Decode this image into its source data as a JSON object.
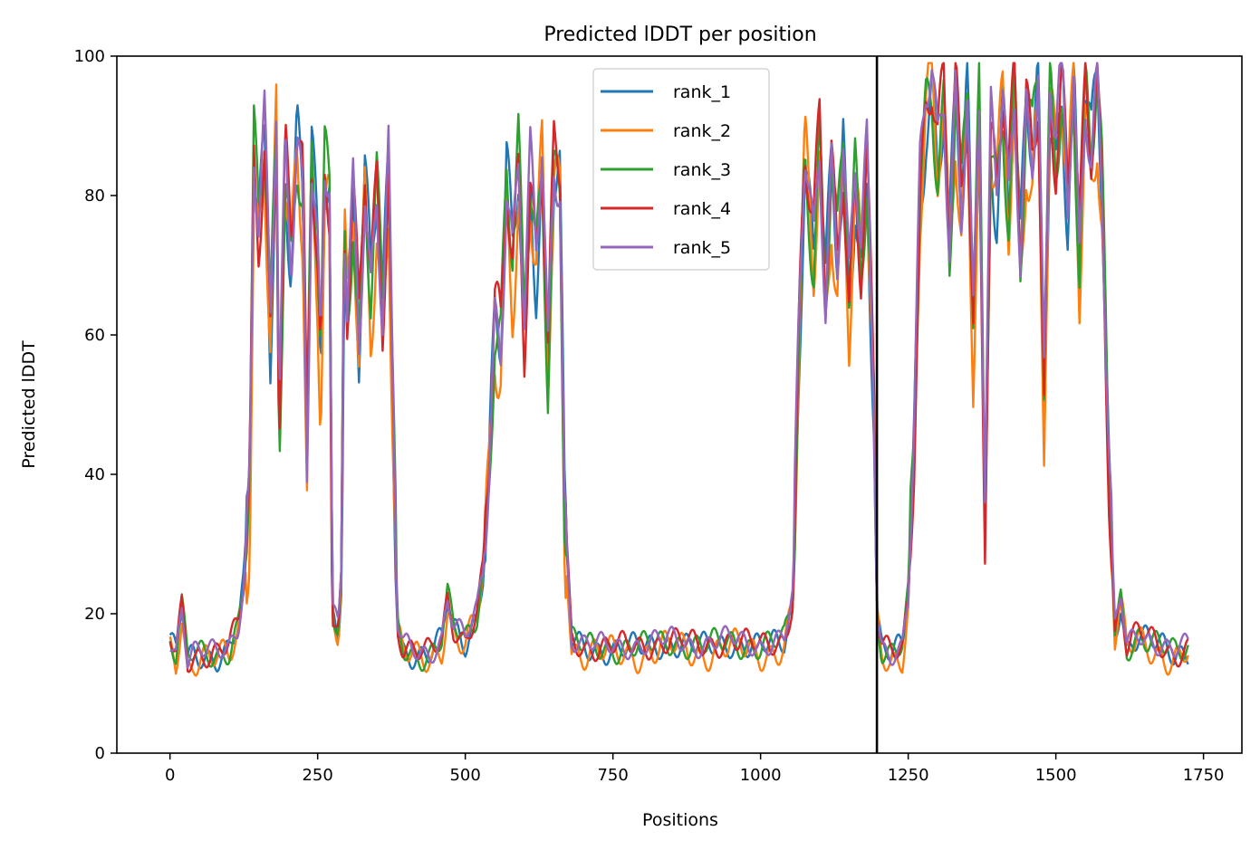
{
  "chart_data": {
    "type": "line",
    "title": "Predicted lDDT per position",
    "xlabel": "Positions",
    "ylabel": "Predicted lDDT",
    "xlim": [
      -90,
      1815
    ],
    "ylim": [
      0,
      100
    ],
    "xticks": [
      0,
      250,
      500,
      750,
      1000,
      1250,
      1500,
      1750
    ],
    "yticks": [
      0,
      20,
      40,
      60,
      80,
      100
    ],
    "vline": 1197,
    "grid": false,
    "legend_position": "top-center",
    "series": [
      {
        "name": "rank_1",
        "color": "#1f77b4",
        "offset": 0.0,
        "phase": 0.3,
        "amp": 3.0
      },
      {
        "name": "rank_2",
        "color": "#ff7f0e",
        "offset": -2.5,
        "phase": 1.7,
        "amp": 3.5
      },
      {
        "name": "rank_3",
        "color": "#2ca02c",
        "offset": 0.5,
        "phase": 2.9,
        "amp": 3.0
      },
      {
        "name": "rank_4",
        "color": "#d62728",
        "offset": 1.0,
        "phase": 4.1,
        "amp": 2.8
      },
      {
        "name": "rank_5",
        "color": "#9467bd",
        "offset": 1.5,
        "phase": 5.3,
        "amp": 2.5
      }
    ],
    "profile": [
      [
        0,
        16
      ],
      [
        10,
        14
      ],
      [
        20,
        21
      ],
      [
        30,
        13
      ],
      [
        40,
        14
      ],
      [
        60,
        14
      ],
      [
        80,
        14
      ],
      [
        100,
        15
      ],
      [
        115,
        18
      ],
      [
        125,
        24
      ],
      [
        135,
        38
      ],
      [
        142,
        85
      ],
      [
        150,
        75
      ],
      [
        160,
        88
      ],
      [
        170,
        60
      ],
      [
        180,
        90
      ],
      [
        185,
        45
      ],
      [
        195,
        85
      ],
      [
        205,
        70
      ],
      [
        215,
        88
      ],
      [
        225,
        80
      ],
      [
        232,
        42
      ],
      [
        240,
        85
      ],
      [
        250,
        70
      ],
      [
        255,
        55
      ],
      [
        262,
        82
      ],
      [
        270,
        80
      ],
      [
        275,
        20
      ],
      [
        285,
        17
      ],
      [
        290,
        25
      ],
      [
        295,
        75
      ],
      [
        300,
        62
      ],
      [
        310,
        80
      ],
      [
        320,
        58
      ],
      [
        330,
        82
      ],
      [
        340,
        66
      ],
      [
        350,
        80
      ],
      [
        360,
        62
      ],
      [
        370,
        84
      ],
      [
        375,
        60
      ],
      [
        385,
        18
      ],
      [
        395,
        15
      ],
      [
        420,
        14
      ],
      [
        440,
        14
      ],
      [
        460,
        16
      ],
      [
        470,
        22
      ],
      [
        480,
        18
      ],
      [
        500,
        16
      ],
      [
        520,
        20
      ],
      [
        530,
        26
      ],
      [
        540,
        40
      ],
      [
        550,
        62
      ],
      [
        560,
        58
      ],
      [
        570,
        82
      ],
      [
        580,
        70
      ],
      [
        590,
        84
      ],
      [
        600,
        60
      ],
      [
        610,
        82
      ],
      [
        620,
        70
      ],
      [
        630,
        85
      ],
      [
        640,
        55
      ],
      [
        650,
        84
      ],
      [
        660,
        82
      ],
      [
        668,
        35
      ],
      [
        680,
        16
      ],
      [
        700,
        15
      ],
      [
        750,
        15
      ],
      [
        800,
        15
      ],
      [
        850,
        16
      ],
      [
        900,
        15
      ],
      [
        950,
        16
      ],
      [
        1000,
        15
      ],
      [
        1040,
        16
      ],
      [
        1055,
        22
      ],
      [
        1065,
        60
      ],
      [
        1075,
        86
      ],
      [
        1090,
        72
      ],
      [
        1100,
        88
      ],
      [
        1110,
        64
      ],
      [
        1120,
        84
      ],
      [
        1130,
        70
      ],
      [
        1140,
        86
      ],
      [
        1150,
        64
      ],
      [
        1160,
        82
      ],
      [
        1170,
        70
      ],
      [
        1180,
        84
      ],
      [
        1192,
        50
      ],
      [
        1197,
        20
      ],
      [
        1205,
        15
      ],
      [
        1220,
        14
      ],
      [
        1240,
        15
      ],
      [
        1250,
        22
      ],
      [
        1260,
        45
      ],
      [
        1270,
        80
      ],
      [
        1280,
        92
      ],
      [
        1290,
        96
      ],
      [
        1300,
        85
      ],
      [
        1310,
        94
      ],
      [
        1320,
        72
      ],
      [
        1330,
        95
      ],
      [
        1340,
        78
      ],
      [
        1350,
        94
      ],
      [
        1360,
        60
      ],
      [
        1370,
        92
      ],
      [
        1380,
        33
      ],
      [
        1390,
        88
      ],
      [
        1400,
        80
      ],
      [
        1410,
        94
      ],
      [
        1420,
        78
      ],
      [
        1430,
        96
      ],
      [
        1440,
        70
      ],
      [
        1450,
        92
      ],
      [
        1460,
        85
      ],
      [
        1470,
        96
      ],
      [
        1480,
        50
      ],
      [
        1490,
        94
      ],
      [
        1500,
        85
      ],
      [
        1510,
        96
      ],
      [
        1520,
        78
      ],
      [
        1530,
        97
      ],
      [
        1540,
        70
      ],
      [
        1550,
        95
      ],
      [
        1560,
        85
      ],
      [
        1570,
        96
      ],
      [
        1578,
        80
      ],
      [
        1590,
        40
      ],
      [
        1600,
        17
      ],
      [
        1610,
        22
      ],
      [
        1620,
        15
      ],
      [
        1640,
        17
      ],
      [
        1660,
        16
      ],
      [
        1680,
        15
      ],
      [
        1700,
        14
      ],
      [
        1725,
        15
      ]
    ]
  }
}
